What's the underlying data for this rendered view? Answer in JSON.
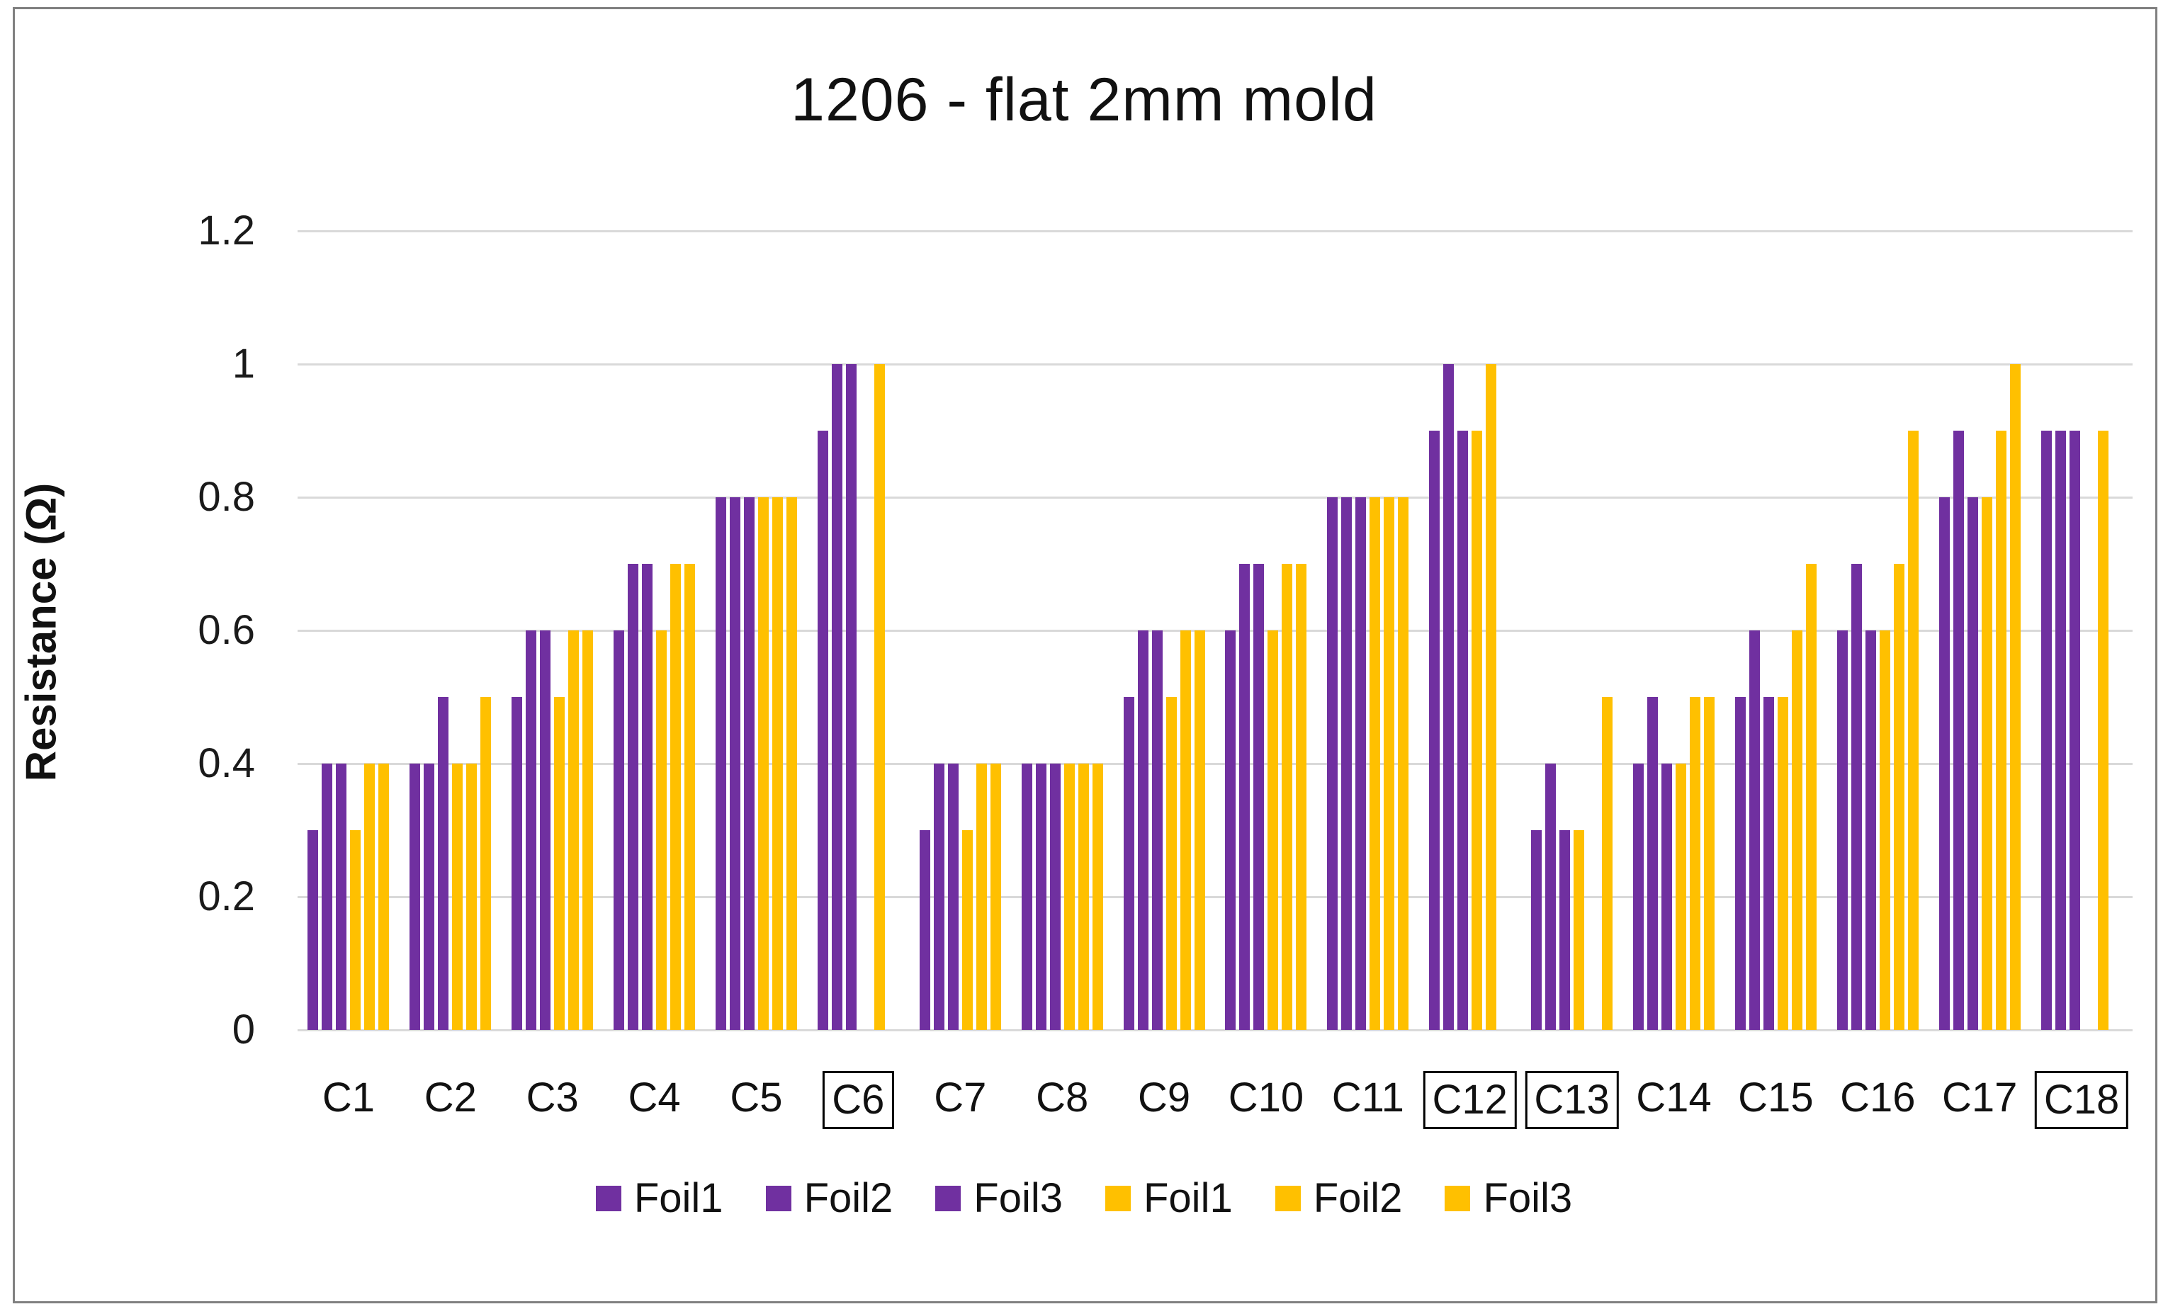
{
  "chart_data": {
    "type": "bar",
    "title": "1206 - flat 2mm mold",
    "ylabel": "Resistance (Ω)",
    "ylim": [
      0,
      1.2
    ],
    "ytick_values": [
      0,
      0.2,
      0.4,
      0.6,
      0.8,
      1,
      1.2
    ],
    "ytick_labels": [
      "0",
      "0.2",
      "0.4",
      "0.6",
      "0.8",
      "1",
      "1.2"
    ],
    "grid": true,
    "legend_position": "bottom",
    "categories": [
      "C1",
      "C2",
      "C3",
      "C4",
      "C5",
      "C6",
      "C7",
      "C8",
      "C9",
      "C10",
      "C11",
      "C12",
      "C13",
      "C14",
      "C15",
      "C16",
      "C17",
      "C18"
    ],
    "boxed_categories": [
      "C6",
      "C12",
      "C13",
      "C18"
    ],
    "accent_colors": {
      "purple": "#7030A0",
      "gold": "#FFC000"
    },
    "series": [
      {
        "name": "Foil1",
        "color": "#7030A0",
        "values": [
          0.3,
          0.4,
          0.5,
          0.6,
          0.8,
          0.9,
          0.3,
          0.4,
          0.5,
          0.6,
          0.8,
          0.9,
          0.3,
          0.4,
          0.5,
          0.6,
          0.8,
          0.9
        ]
      },
      {
        "name": "Foil2",
        "color": "#7030A0",
        "values": [
          0.4,
          0.4,
          0.6,
          0.7,
          0.8,
          1.0,
          0.4,
          0.4,
          0.6,
          0.7,
          0.8,
          1.0,
          0.4,
          0.5,
          0.6,
          0.7,
          0.9,
          0.9
        ]
      },
      {
        "name": "Foil3",
        "color": "#7030A0",
        "values": [
          0.4,
          0.5,
          0.6,
          0.7,
          0.8,
          1.0,
          0.4,
          0.4,
          0.6,
          0.7,
          0.8,
          0.9,
          0.3,
          0.4,
          0.5,
          0.6,
          0.8,
          0.9
        ]
      },
      {
        "name": "Foil1",
        "color": "#FFC000",
        "values": [
          0.3,
          0.4,
          0.5,
          0.6,
          0.8,
          null,
          0.3,
          0.4,
          0.5,
          0.6,
          0.8,
          0.9,
          0.3,
          0.4,
          0.5,
          0.6,
          0.8,
          null
        ]
      },
      {
        "name": "Foil2",
        "color": "#FFC000",
        "values": [
          0.4,
          0.4,
          0.6,
          0.7,
          0.8,
          1.0,
          0.4,
          0.4,
          0.6,
          0.7,
          0.8,
          1.0,
          null,
          0.5,
          0.6,
          0.7,
          0.9,
          0.9
        ]
      },
      {
        "name": "Foil3",
        "color": "#FFC000",
        "values": [
          0.4,
          0.5,
          0.6,
          0.7,
          0.8,
          null,
          0.4,
          0.4,
          0.6,
          0.7,
          0.8,
          null,
          0.5,
          0.5,
          0.7,
          0.9,
          1.0,
          null
        ]
      }
    ]
  }
}
